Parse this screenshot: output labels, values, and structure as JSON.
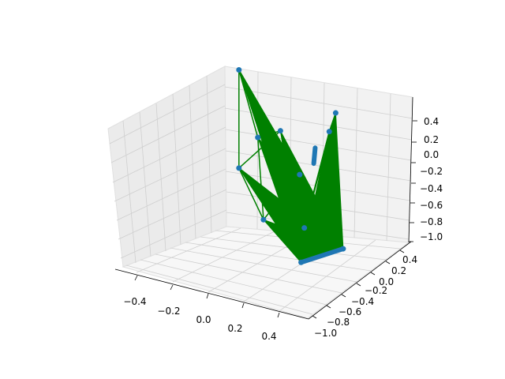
{
  "chart_data": {
    "type": "3d-scatter-with-lines",
    "title": "",
    "xlabel": "",
    "ylabel": "",
    "zlabel": "",
    "x_ticks": [
      "−0.4",
      "−0.2",
      "0.0",
      "0.2",
      "0.4"
    ],
    "y_ticks": [
      "−1.0",
      "−0.8",
      "−0.6",
      "−0.4",
      "−0.2",
      "0.0",
      "0.2",
      "0.4"
    ],
    "z_ticks": [
      "0.4",
      "0.2",
      "0.0",
      "−0.2",
      "−0.4",
      "−0.6",
      "−0.8",
      "−1.0"
    ],
    "xlim": [
      -0.5,
      0.5
    ],
    "ylim": [
      -1.05,
      0.5
    ],
    "zlim": [
      -1.05,
      0.5
    ],
    "grid": true,
    "colors": {
      "points": "#1f77b4",
      "lines": "#008000",
      "pane_left": "#ebebeb",
      "pane_back": "#f2f2f2",
      "pane_floor": "#f7f7f7",
      "grid": "#cfcfcf"
    },
    "points": [
      {
        "x": -0.15,
        "y": 0.45,
        "z": 0.45
      },
      {
        "x": -0.4,
        "y": 0.2,
        "z": 0.35
      },
      {
        "x": -0.05,
        "y": -0.3,
        "z": 0.1
      },
      {
        "x": 0.3,
        "y": 0.0,
        "z": 0.05
      },
      {
        "x": 0.45,
        "y": -0.9,
        "z": 0.5
      },
      {
        "x": 0.45,
        "y": -0.9,
        "z": -0.45
      },
      {
        "x": 0.4,
        "y": -0.3,
        "z": -0.95
      },
      {
        "x": -0.45,
        "y": 0.1,
        "z": -0.5
      },
      {
        "x": -0.1,
        "y": 0.1,
        "z": -0.2
      },
      {
        "x": -0.2,
        "y": 0.2,
        "z": -1.0
      },
      {
        "x": 0.15,
        "y": 0.25,
        "z": -1.0
      }
    ],
    "segments": [
      {
        "x": [
          -0.2,
          0.15
        ],
        "y": [
          0.2,
          0.25
        ],
        "z": [
          -1.0,
          -1.0
        ]
      },
      {
        "x": [
          0.05,
          0.15
        ],
        "y": [
          0.1,
          0.0
        ],
        "z": [
          0.0,
          -0.2
        ]
      }
    ]
  }
}
